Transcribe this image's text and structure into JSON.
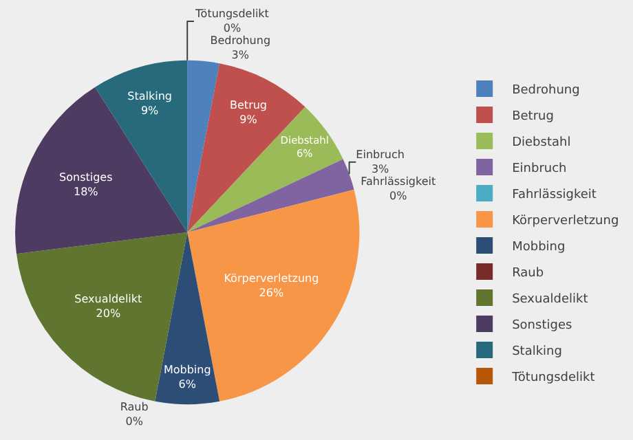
{
  "chart_data": {
    "type": "pie",
    "categories": [
      "Bedrohung",
      "Betrug",
      "Diebstahl",
      "Einbruch",
      "Fahrlässigkeit",
      "Körperverletzung",
      "Mobbing",
      "Raub",
      "Sexualdelikt",
      "Sonstiges",
      "Stalking",
      "Tötungsdelikt"
    ],
    "values": [
      3,
      9,
      6,
      3,
      0,
      26,
      6,
      0,
      20,
      18,
      9,
      0
    ],
    "value_labels": [
      "3%",
      "9%",
      "6%",
      "3%",
      "0%",
      "26%",
      "6%",
      "0%",
      "20%",
      "18%",
      "9%",
      "0%"
    ],
    "colors": [
      "#4f81bd",
      "#c0504d",
      "#9bbb59",
      "#8064a2",
      "#4bacc6",
      "#f79646",
      "#2c4d75",
      "#772c2a",
      "#5f7530",
      "#4d3b62",
      "#276a7c",
      "#b65708"
    ],
    "legend": "right"
  }
}
